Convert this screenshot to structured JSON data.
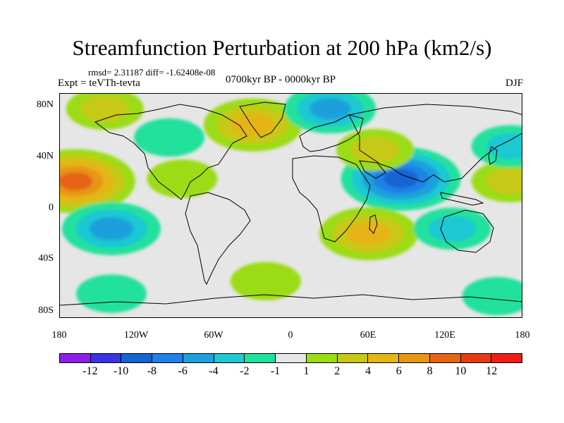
{
  "title": "Streamfunction Perturbation at 200 hPa (km2/s)",
  "stats": "rmsd= 2.31187 diff= -1.62408e-08",
  "experiment": "Expt = teVTh-tevta",
  "period": "0700kyr BP - 0000kyr BP",
  "season": "DJF",
  "lat_labels": [
    "80N",
    "40N",
    "0",
    "40S",
    "80S"
  ],
  "lon_labels": [
    "180",
    "120W",
    "60W",
    "0",
    "60E",
    "120E",
    "180"
  ],
  "colorbar": {
    "colors": [
      "#8d1ee6",
      "#3c32e6",
      "#1464d2",
      "#1e82e6",
      "#1ea0dc",
      "#1ec8d2",
      "#20e19c",
      "#e6e6e6",
      "#9bdc14",
      "#c8c814",
      "#e6b414",
      "#e69614",
      "#e66414",
      "#e63c14",
      "#f01e14"
    ],
    "labels": [
      "-12",
      "-10",
      "-8",
      "-6",
      "-4",
      "-2",
      "-1",
      "1",
      "2",
      "4",
      "6",
      "8",
      "10",
      "12"
    ]
  },
  "chart_data": {
    "type": "heatmap",
    "title": "Streamfunction Perturbation at 200 hPa (km2/s)",
    "xlabel": "",
    "ylabel": "",
    "x_range": [
      -180,
      180
    ],
    "y_range": [
      -90,
      90
    ],
    "x_ticks": [
      "180",
      "120W",
      "60W",
      "0",
      "60E",
      "120E",
      "180"
    ],
    "y_ticks": [
      "80N",
      "40N",
      "0",
      "40S",
      "80S"
    ],
    "levels": [
      -12,
      -10,
      -8,
      -6,
      -4,
      -2,
      -1,
      1,
      2,
      4,
      6,
      8,
      10,
      12
    ],
    "features": [
      {
        "lon": -168,
        "lat": 20,
        "value": 9,
        "sign": "positive"
      },
      {
        "lon": -140,
        "lat": -18,
        "value": -6,
        "sign": "negative"
      },
      {
        "lon": -145,
        "lat": 78,
        "value": 3,
        "sign": "positive"
      },
      {
        "lon": -30,
        "lat": 65,
        "value": 6,
        "sign": "positive"
      },
      {
        "lon": -95,
        "lat": 55,
        "value": -2,
        "sign": "negative"
      },
      {
        "lon": -85,
        "lat": 22,
        "value": 2,
        "sign": "positive"
      },
      {
        "lon": 30,
        "lat": 78,
        "value": -5,
        "sign": "negative"
      },
      {
        "lon": 85,
        "lat": 22,
        "value": -9,
        "sign": "negative"
      },
      {
        "lon": 65,
        "lat": 45,
        "value": 3,
        "sign": "positive"
      },
      {
        "lon": 60,
        "lat": -22,
        "value": 6,
        "sign": "positive"
      },
      {
        "lon": 125,
        "lat": -18,
        "value": -3,
        "sign": "negative"
      },
      {
        "lon": 170,
        "lat": 20,
        "value": 3,
        "sign": "positive"
      },
      {
        "lon": 170,
        "lat": 48,
        "value": -3,
        "sign": "negative"
      },
      {
        "lon": -20,
        "lat": -60,
        "value": 2,
        "sign": "positive"
      },
      {
        "lon": -140,
        "lat": -70,
        "value": -2,
        "sign": "negative"
      },
      {
        "lon": 160,
        "lat": -72,
        "value": -2,
        "sign": "negative"
      }
    ]
  }
}
